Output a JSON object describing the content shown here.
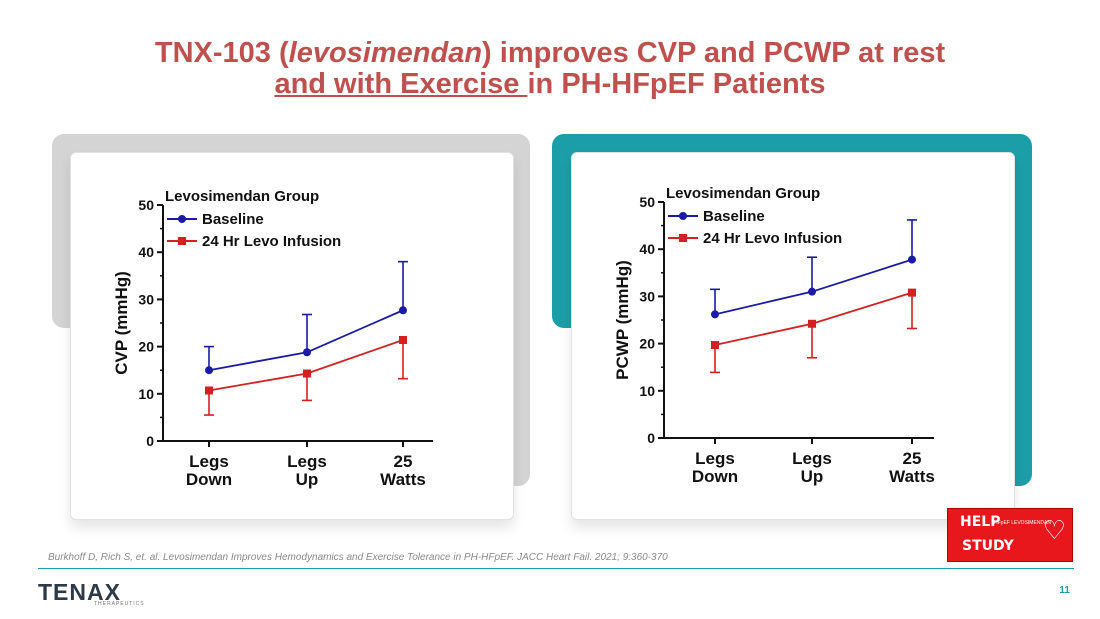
{
  "title": {
    "line1_pre": "TNX-103 (",
    "line1_italic": "levosimendan",
    "line1_post": ") improves CVP and PCWP at rest",
    "line2_underlined": "and with Exercise ",
    "line2_post": "in PH-HFpEF Patients"
  },
  "colors": {
    "title": "#c0504d",
    "baseline": "#1a1aa6",
    "levo": "#d42020",
    "teal": "#1c9ea8",
    "gray": "#d4d4d4"
  },
  "chart_data": [
    {
      "type": "line",
      "title": "Levosimendan Group",
      "ylabel": "CVP (mmHg)",
      "xlabel": "",
      "categories": [
        "Legs Down",
        "Legs Up",
        "25 Watts"
      ],
      "category_lines": [
        [
          "Legs",
          "Down"
        ],
        [
          "Legs",
          "Up"
        ],
        [
          "25",
          "Watts"
        ]
      ],
      "ylim": [
        0,
        50
      ],
      "yticks": [
        0,
        10,
        20,
        30,
        40,
        50
      ],
      "legend_position": "top-left",
      "grid": false,
      "series": [
        {
          "name": "Baseline",
          "marker": "circle",
          "color": "#1a1aa6",
          "values": [
            15,
            18.8,
            27.7
          ],
          "error_upper": [
            20,
            26.8,
            38
          ]
        },
        {
          "name": "24 Hr Levo Infusion",
          "marker": "square",
          "color": "#d42020",
          "values": [
            10.7,
            14.3,
            21.4
          ],
          "error_lower": [
            5.5,
            8.6,
            13.2
          ]
        }
      ]
    },
    {
      "type": "line",
      "title": "Levosimendan Group",
      "ylabel": "PCWP (mmHg)",
      "xlabel": "",
      "categories": [
        "Legs Down",
        "Legs Up",
        "25 Watts"
      ],
      "category_lines": [
        [
          "Legs",
          "Down"
        ],
        [
          "Legs",
          "Up"
        ],
        [
          "25",
          "Watts"
        ]
      ],
      "ylim": [
        0,
        50
      ],
      "yticks": [
        0,
        10,
        20,
        30,
        40,
        50
      ],
      "legend_position": "top-left",
      "grid": false,
      "series": [
        {
          "name": "Baseline",
          "marker": "circle",
          "color": "#1a1aa6",
          "values": [
            26.2,
            31,
            37.8
          ],
          "error_upper": [
            31.5,
            38.3,
            46.2
          ]
        },
        {
          "name": "24 Hr Levo Infusion",
          "marker": "square",
          "color": "#d42020",
          "values": [
            19.7,
            24.2,
            30.8
          ],
          "error_lower": [
            13.9,
            17,
            23.2
          ]
        }
      ]
    }
  ],
  "citation": "Burkhoff D, Rich S, et. al. Levosimendan Improves Hemodynamics and Exercise Tolerance in PH-HFpEF. JACC Heart Fail. 2021; 9:360-370",
  "logo": {
    "text": "TENAX",
    "subtitle": "THERAPEUTICS"
  },
  "badge": {
    "line1": "HELP",
    "line2": "HFpEF LEVOSIMENDAN",
    "line3": "STUDY",
    "hearts": "♡"
  },
  "page_number": "11"
}
